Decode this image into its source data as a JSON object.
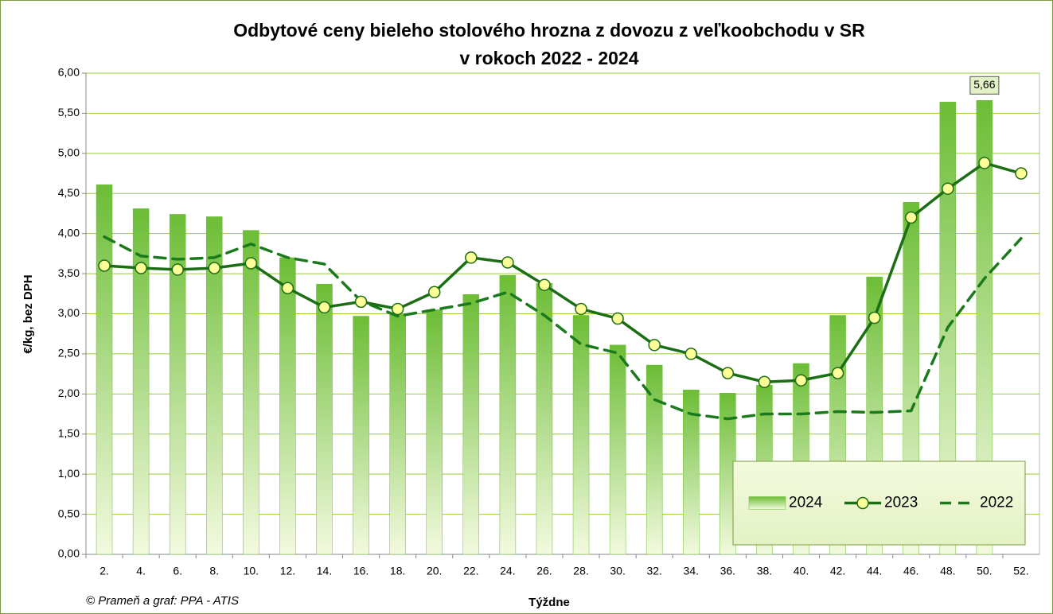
{
  "chart_data": {
    "type": "bar-line",
    "title": "Odbytové ceny bieleho stolového hrozna z dovozu z veľkoobchodu v SR",
    "subtitle": "v rokoch 2022 - 2024",
    "x_label": "Týždne",
    "y_label": "€/kg, bez DPH",
    "source": "© Prameň a graf: PPA - ATIS",
    "categories": [
      "2.",
      "4.",
      "6.",
      "8.",
      "10.",
      "12.",
      "14.",
      "16.",
      "18.",
      "20.",
      "22.",
      "24.",
      "26.",
      "28.",
      "30.",
      "32.",
      "34.",
      "36.",
      "38.",
      "40.",
      "42.",
      "44.",
      "46.",
      "48.",
      "50.",
      "52."
    ],
    "series": [
      {
        "name": "2024",
        "type": "bar",
        "color": "#6cbd36",
        "values": [
          4.61,
          4.31,
          4.24,
          4.21,
          4.04,
          3.7,
          3.37,
          2.97,
          3.0,
          3.05,
          3.24,
          3.48,
          3.38,
          2.98,
          2.61,
          2.36,
          2.05,
          2.01,
          2.11,
          2.38,
          2.98,
          3.46,
          4.39,
          5.64,
          5.66,
          null
        ],
        "value_labels": [
          null,
          null,
          null,
          null,
          null,
          null,
          null,
          null,
          null,
          null,
          null,
          null,
          null,
          null,
          null,
          null,
          null,
          null,
          null,
          null,
          null,
          null,
          null,
          null,
          "5,66",
          null
        ]
      },
      {
        "name": "2023",
        "type": "line",
        "color": "#1b6e14",
        "marker_color": "#ffff99",
        "values": [
          3.6,
          3.57,
          3.55,
          3.57,
          3.63,
          3.32,
          3.08,
          3.15,
          3.06,
          3.27,
          3.7,
          3.64,
          3.36,
          3.06,
          2.94,
          2.61,
          2.5,
          2.26,
          2.15,
          2.17,
          2.26,
          2.95,
          4.2,
          4.56,
          4.88,
          4.75
        ]
      },
      {
        "name": "2022",
        "type": "dashed",
        "color": "#1b7a1b",
        "values": [
          3.96,
          3.72,
          3.68,
          3.7,
          3.87,
          3.7,
          3.62,
          3.16,
          2.97,
          3.05,
          3.13,
          3.27,
          2.98,
          2.62,
          2.51,
          1.93,
          1.75,
          1.69,
          1.75,
          1.75,
          1.78,
          1.77,
          1.79,
          2.83,
          3.44,
          3.94
        ]
      }
    ],
    "ylim": [
      0,
      6
    ],
    "yticks": [
      {
        "value": 0,
        "label": "0,00"
      },
      {
        "value": 0.5,
        "label": "0,50"
      },
      {
        "value": 1,
        "label": "1,00"
      },
      {
        "value": 1.5,
        "label": "1,50"
      },
      {
        "value": 2,
        "label": "2,00"
      },
      {
        "value": 2.5,
        "label": "2,50"
      },
      {
        "value": 3,
        "label": "3,00"
      },
      {
        "value": 3.5,
        "label": "3,50"
      },
      {
        "value": 4,
        "label": "4,00"
      },
      {
        "value": 4.5,
        "label": "4,50"
      },
      {
        "value": 5,
        "label": "5,00"
      },
      {
        "value": 5.5,
        "label": "5,50"
      },
      {
        "value": 6,
        "label": "6,00"
      }
    ],
    "grid": true,
    "legend": "lower right"
  }
}
